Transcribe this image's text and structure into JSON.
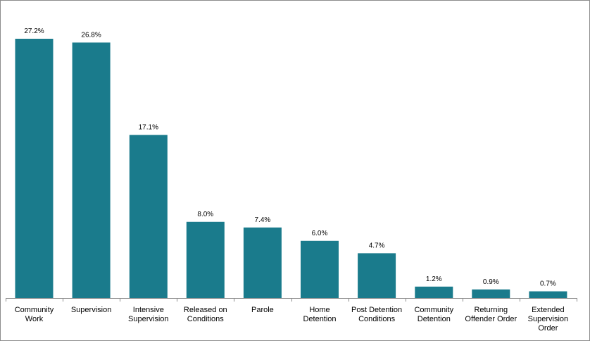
{
  "chart_data": {
    "type": "bar",
    "categories": [
      [
        "Community",
        "Work"
      ],
      [
        "Supervision"
      ],
      [
        "Intensive",
        "Supervision"
      ],
      [
        "Released on",
        "Conditions"
      ],
      [
        "Parole"
      ],
      [
        "Home",
        "Detention"
      ],
      [
        "Post Detention",
        "Conditions"
      ],
      [
        "Community",
        "Detention"
      ],
      [
        "Returning",
        "Offender Order"
      ],
      [
        "Extended",
        "Supervision",
        "Order"
      ]
    ],
    "values": [
      27.2,
      26.8,
      17.1,
      8.0,
      7.4,
      6.0,
      4.7,
      1.2,
      0.9,
      0.7
    ],
    "data_labels": [
      "27.2%",
      "26.8%",
      "17.1%",
      "8.0%",
      "7.4%",
      "6.0%",
      "4.7%",
      "1.2%",
      "0.9%",
      "0.7%"
    ],
    "title": "",
    "xlabel": "",
    "ylabel": "",
    "ylim": [
      0,
      27.2
    ],
    "grid": false,
    "legend": "none",
    "bar_color": "#1a7b8c"
  }
}
